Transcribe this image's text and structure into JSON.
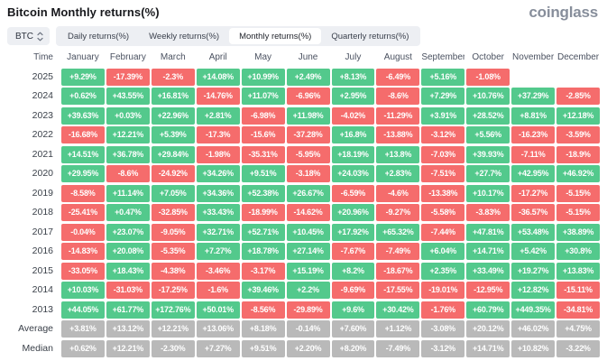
{
  "page": {
    "title": "Bitcoin Monthly returns(%)",
    "logo": "coinglass"
  },
  "controls": {
    "coin_selector": {
      "label": "BTC"
    },
    "tabs": [
      {
        "label": "Daily returns(%)",
        "selected": false
      },
      {
        "label": "Weekly returns(%)",
        "selected": false
      },
      {
        "label": "Monthly returns(%)",
        "selected": true
      },
      {
        "label": "Quarterly returns(%)",
        "selected": false
      }
    ]
  },
  "colors": {
    "positive": "#53c98c",
    "negative": "#f56c6c",
    "neutral": "#b9b9b9"
  },
  "table": {
    "columns": [
      "Time",
      "January",
      "February",
      "March",
      "April",
      "May",
      "June",
      "July",
      "August",
      "September",
      "October",
      "November",
      "December"
    ],
    "rows": [
      {
        "label": "2025",
        "summary": false,
        "values": [
          "+9.29%",
          "-17.39%",
          "-2.3%",
          "+14.08%",
          "+10.99%",
          "+2.49%",
          "+8.13%",
          "-6.49%",
          "+5.16%",
          "-1.08%",
          "",
          ""
        ]
      },
      {
        "label": "2024",
        "summary": false,
        "values": [
          "+0.62%",
          "+43.55%",
          "+16.81%",
          "-14.76%",
          "+11.07%",
          "-6.96%",
          "+2.95%",
          "-8.6%",
          "+7.29%",
          "+10.76%",
          "+37.29%",
          "-2.85%"
        ]
      },
      {
        "label": "2023",
        "summary": false,
        "values": [
          "+39.63%",
          "+0.03%",
          "+22.96%",
          "+2.81%",
          "-6.98%",
          "+11.98%",
          "-4.02%",
          "-11.29%",
          "+3.91%",
          "+28.52%",
          "+8.81%",
          "+12.18%"
        ]
      },
      {
        "label": "2022",
        "summary": false,
        "values": [
          "-16.68%",
          "+12.21%",
          "+5.39%",
          "-17.3%",
          "-15.6%",
          "-37.28%",
          "+16.8%",
          "-13.88%",
          "-3.12%",
          "+5.56%",
          "-16.23%",
          "-3.59%"
        ]
      },
      {
        "label": "2021",
        "summary": false,
        "values": [
          "+14.51%",
          "+36.78%",
          "+29.84%",
          "-1.98%",
          "-35.31%",
          "-5.95%",
          "+18.19%",
          "+13.8%",
          "-7.03%",
          "+39.93%",
          "-7.11%",
          "-18.9%"
        ]
      },
      {
        "label": "2020",
        "summary": false,
        "values": [
          "+29.95%",
          "-8.6%",
          "-24.92%",
          "+34.26%",
          "+9.51%",
          "-3.18%",
          "+24.03%",
          "+2.83%",
          "-7.51%",
          "+27.7%",
          "+42.95%",
          "+46.92%"
        ]
      },
      {
        "label": "2019",
        "summary": false,
        "values": [
          "-8.58%",
          "+11.14%",
          "+7.05%",
          "+34.36%",
          "+52.38%",
          "+26.67%",
          "-6.59%",
          "-4.6%",
          "-13.38%",
          "+10.17%",
          "-17.27%",
          "-5.15%"
        ]
      },
      {
        "label": "2018",
        "summary": false,
        "values": [
          "-25.41%",
          "+0.47%",
          "-32.85%",
          "+33.43%",
          "-18.99%",
          "-14.62%",
          "+20.96%",
          "-9.27%",
          "-5.58%",
          "-3.83%",
          "-36.57%",
          "-5.15%"
        ]
      },
      {
        "label": "2017",
        "summary": false,
        "values": [
          "-0.04%",
          "+23.07%",
          "-9.05%",
          "+32.71%",
          "+52.71%",
          "+10.45%",
          "+17.92%",
          "+65.32%",
          "-7.44%",
          "+47.81%",
          "+53.48%",
          "+38.89%"
        ]
      },
      {
        "label": "2016",
        "summary": false,
        "values": [
          "-14.83%",
          "+20.08%",
          "-5.35%",
          "+7.27%",
          "+18.78%",
          "+27.14%",
          "-7.67%",
          "-7.49%",
          "+6.04%",
          "+14.71%",
          "+5.42%",
          "+30.8%"
        ]
      },
      {
        "label": "2015",
        "summary": false,
        "values": [
          "-33.05%",
          "+18.43%",
          "-4.38%",
          "-3.46%",
          "-3.17%",
          "+15.19%",
          "+8.2%",
          "-18.67%",
          "+2.35%",
          "+33.49%",
          "+19.27%",
          "+13.83%"
        ]
      },
      {
        "label": "2014",
        "summary": false,
        "values": [
          "+10.03%",
          "-31.03%",
          "-17.25%",
          "-1.6%",
          "+39.46%",
          "+2.2%",
          "-9.69%",
          "-17.55%",
          "-19.01%",
          "-12.95%",
          "+12.82%",
          "-15.11%"
        ]
      },
      {
        "label": "2013",
        "summary": false,
        "values": [
          "+44.05%",
          "+61.77%",
          "+172.76%",
          "+50.01%",
          "-8.56%",
          "-29.89%",
          "+9.6%",
          "+30.42%",
          "-1.76%",
          "+60.79%",
          "+449.35%",
          "-34.81%"
        ]
      },
      {
        "label": "Average",
        "summary": true,
        "values": [
          "+3.81%",
          "+13.12%",
          "+12.21%",
          "+13.06%",
          "+8.18%",
          "-0.14%",
          "+7.60%",
          "+1.12%",
          "-3.08%",
          "+20.12%",
          "+46.02%",
          "+4.75%"
        ]
      },
      {
        "label": "Median",
        "summary": true,
        "values": [
          "+0.62%",
          "+12.21%",
          "-2.30%",
          "+7.27%",
          "+9.51%",
          "+2.20%",
          "+8.20%",
          "-7.49%",
          "-3.12%",
          "+14.71%",
          "+10.82%",
          "-3.22%"
        ]
      }
    ]
  }
}
